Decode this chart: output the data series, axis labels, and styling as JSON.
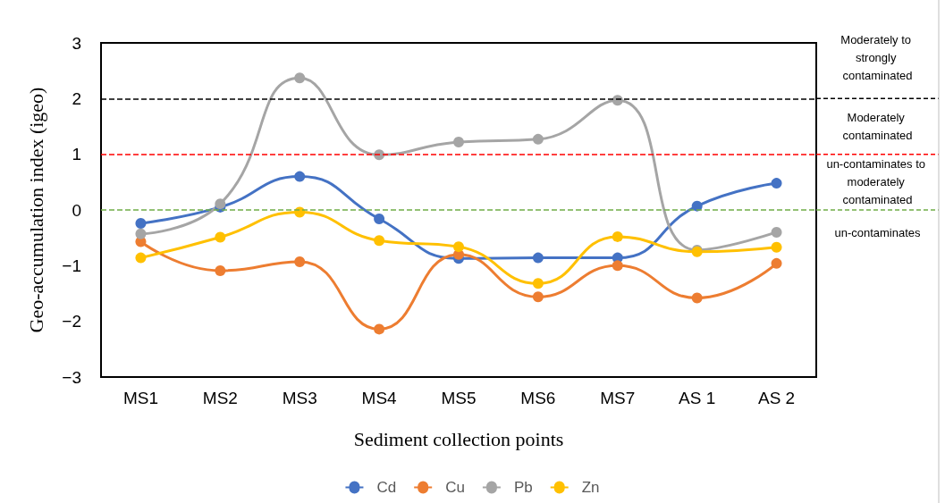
{
  "chart_data": {
    "type": "line",
    "xlabel": "Sediment collection points",
    "ylabel": "Geo-accumulation index (igeo)",
    "categories": [
      "MS1",
      "MS2",
      "MS3",
      "MS4",
      "MS5",
      "MS6",
      "MS7",
      "AS 1",
      "AS 2"
    ],
    "series": [
      {
        "name": "Cd",
        "color": "#4472c4",
        "values": [
          -0.24,
          0.05,
          0.6,
          -0.16,
          -0.87,
          -0.86,
          -0.86,
          0.07,
          0.48
        ]
      },
      {
        "name": "Cu",
        "color": "#ed7d31",
        "values": [
          -0.57,
          -1.09,
          -0.93,
          -2.14,
          -0.8,
          -1.56,
          -1.0,
          -1.58,
          -0.96
        ]
      },
      {
        "name": "Pb",
        "color": "#a5a5a5",
        "values": [
          -0.43,
          0.11,
          2.37,
          0.99,
          1.22,
          1.27,
          1.97,
          -0.72,
          -0.4
        ]
      },
      {
        "name": "Zn",
        "color": "#ffc000",
        "values": [
          -0.86,
          -0.49,
          -0.04,
          -0.55,
          -0.66,
          -1.32,
          -0.48,
          -0.75,
          -0.67
        ]
      }
    ],
    "ylim": [
      -3,
      3
    ],
    "yticks": [
      -3,
      -2,
      -1,
      0,
      1,
      2,
      3
    ],
    "grid": false,
    "legend": "bottom",
    "marker": "circle",
    "line_style": "solid",
    "ref_lines": [
      {
        "axis": "y",
        "value": 2,
        "label": "Moderately to strongly contaminated",
        "color": "#000000",
        "line_style": "dashed"
      },
      {
        "axis": "y",
        "value": 1,
        "label": "Moderately contaminated",
        "color": "#ff0000",
        "line_style": "dashed"
      },
      {
        "axis": "y",
        "value": 0,
        "label": "un-contaminates to moderately contaminated",
        "color": "#70ad47",
        "line_style": "dashed"
      }
    ],
    "annotations": [
      "un-contaminates"
    ]
  }
}
